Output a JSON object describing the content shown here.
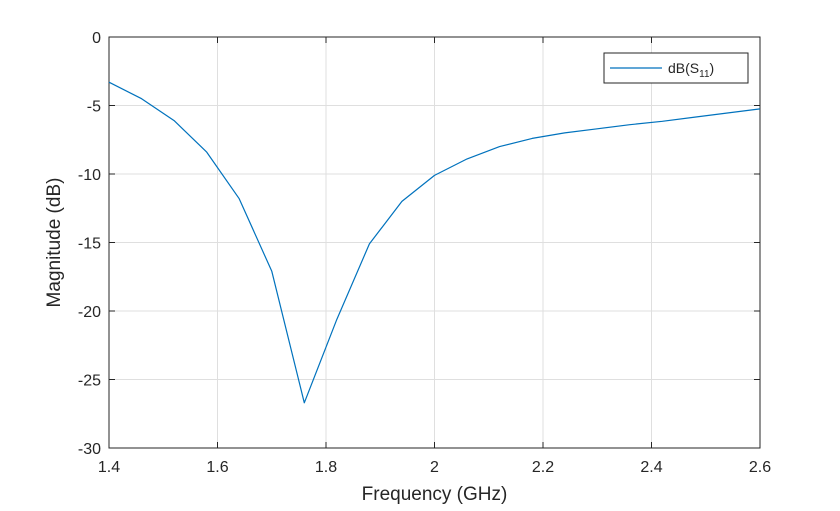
{
  "chart_data": {
    "type": "line",
    "xlabel": "Frequency (GHz)",
    "ylabel": "Magnitude (dB)",
    "xlim": [
      1.4,
      2.6
    ],
    "ylim": [
      -30,
      0
    ],
    "xticks": [
      1.4,
      1.6,
      1.8,
      2,
      2.2,
      2.4,
      2.6
    ],
    "xtick_labels": [
      "1.4",
      "1.6",
      "1.8",
      "2",
      "2.2",
      "2.4",
      "2.6"
    ],
    "yticks": [
      0,
      -5,
      -10,
      -15,
      -20,
      -25,
      -30
    ],
    "ytick_labels": [
      "0",
      "-5",
      "-10",
      "-15",
      "-20",
      "-25",
      "-30"
    ],
    "grid": true,
    "legend_position": "top-right",
    "series": [
      {
        "name_main": "dB(S",
        "name_sub": "11",
        "name_close": ")",
        "color": "#0072BD",
        "x": [
          1.4,
          1.46,
          1.52,
          1.58,
          1.64,
          1.7,
          1.76,
          1.82,
          1.88,
          1.94,
          2.0,
          2.06,
          2.12,
          2.18,
          2.24,
          2.3,
          2.36,
          2.42,
          2.48,
          2.54,
          2.6
        ],
        "y": [
          -3.3,
          -4.5,
          -6.1,
          -8.4,
          -11.8,
          -17.1,
          -26.7,
          -20.6,
          -15.1,
          -12.0,
          -10.1,
          -8.9,
          -8.0,
          -7.4,
          -7.0,
          -6.7,
          -6.4,
          -6.15,
          -5.85,
          -5.55,
          -5.25
        ]
      }
    ]
  }
}
